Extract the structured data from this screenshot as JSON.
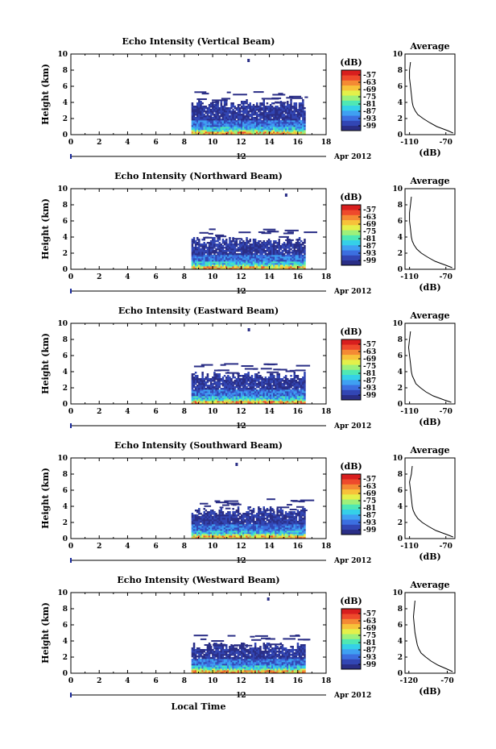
{
  "figure": {
    "date_label": "Apr 2012",
    "day_label": "12",
    "xlabel": "Local Time"
  },
  "colorbar": {
    "unit": "(dB)",
    "ticks": [
      "-57",
      "-63",
      "-69",
      "-75",
      "-81",
      "-87",
      "-93",
      "-99"
    ],
    "colors": [
      "#2a2e86",
      "#3246b4",
      "#3c6fe0",
      "#3fa0f2",
      "#35d0e8",
      "#4fe8b4",
      "#9ef07a",
      "#e4f04a",
      "#f7c23a",
      "#f48a34",
      "#ee4a2c",
      "#d81e1e"
    ]
  },
  "chart_data": [
    {
      "type": "heatmap",
      "title": "Echo Intensity (Vertical Beam)",
      "ylabel": "Height (km)",
      "xlim": [
        0,
        18
      ],
      "ylim": [
        0,
        10
      ],
      "xticks": [
        0,
        2,
        4,
        6,
        8,
        10,
        12,
        14,
        16,
        18
      ],
      "yticks": [
        0,
        2,
        4,
        6,
        8,
        10
      ],
      "data_time_range": [
        8.5,
        16.5
      ],
      "echo_top_km": 3.8,
      "average_profile": {
        "title": "Average",
        "xlabel": "(dB)",
        "xlim": [
          -115,
          -60
        ],
        "xticks": [
          -110,
          -70
        ],
        "heights": [
          0.2,
          0.5,
          1.0,
          1.5,
          2.0,
          2.5,
          3.0,
          3.5,
          4.0,
          5.0,
          6.0,
          7.0,
          8.0,
          9.0
        ],
        "values": [
          -62,
          -68,
          -80,
          -88,
          -95,
          -101,
          -104,
          -106,
          -107,
          -108,
          -109,
          -110,
          -110,
          -109
        ]
      }
    },
    {
      "type": "heatmap",
      "title": "Echo Intensity (Northward Beam)",
      "ylabel": "Height (km)",
      "xlim": [
        0,
        18
      ],
      "ylim": [
        0,
        10
      ],
      "xticks": [
        0,
        2,
        4,
        6,
        8,
        10,
        12,
        14,
        16,
        18
      ],
      "yticks": [
        0,
        2,
        4,
        6,
        8,
        10
      ],
      "data_time_range": [
        8.5,
        16.5
      ],
      "echo_top_km": 3.5,
      "average_profile": {
        "title": "Average",
        "xlabel": "(dB)",
        "xlim": [
          -115,
          -60
        ],
        "xticks": [
          -110,
          -70
        ],
        "heights": [
          0.2,
          0.5,
          1.0,
          1.5,
          2.0,
          2.5,
          3.0,
          3.5,
          4.0,
          5.0,
          6.0,
          7.0,
          8.0,
          9.0
        ],
        "values": [
          -63,
          -70,
          -82,
          -90,
          -97,
          -102,
          -105,
          -107,
          -108,
          -109,
          -110,
          -110,
          -109,
          -108
        ]
      }
    },
    {
      "type": "heatmap",
      "title": "Echo Intensity (Eastward Beam)",
      "ylabel": "Height (km)",
      "xlim": [
        0,
        18
      ],
      "ylim": [
        0,
        10
      ],
      "xticks": [
        0,
        2,
        4,
        6,
        8,
        10,
        12,
        14,
        16,
        18
      ],
      "yticks": [
        0,
        2,
        4,
        6,
        8,
        10
      ],
      "data_time_range": [
        8.5,
        16.5
      ],
      "echo_top_km": 3.5,
      "average_profile": {
        "title": "Average",
        "xlabel": "(dB)",
        "xlim": [
          -115,
          -60
        ],
        "xticks": [
          -110,
          -70
        ],
        "heights": [
          0.2,
          0.5,
          1.0,
          1.5,
          2.0,
          2.5,
          3.0,
          3.5,
          4.0,
          5.0,
          6.0,
          7.0,
          8.0,
          9.0
        ],
        "values": [
          -64,
          -72,
          -84,
          -92,
          -98,
          -103,
          -105,
          -107,
          -108,
          -109,
          -110,
          -111,
          -110,
          -109
        ]
      }
    },
    {
      "type": "heatmap",
      "title": "Echo Intensity (Southward Beam)",
      "ylabel": "Height (km)",
      "xlim": [
        0,
        18
      ],
      "ylim": [
        0,
        10
      ],
      "xticks": [
        0,
        2,
        4,
        6,
        8,
        10,
        12,
        14,
        16,
        18
      ],
      "yticks": [
        0,
        2,
        4,
        6,
        8,
        10
      ],
      "data_time_range": [
        8.5,
        16.5
      ],
      "echo_top_km": 3.4,
      "average_profile": {
        "title": "Average",
        "xlabel": "(dB)",
        "xlim": [
          -115,
          -60
        ],
        "xticks": [
          -110,
          -70
        ],
        "heights": [
          0.2,
          0.5,
          1.0,
          1.5,
          2.0,
          2.5,
          3.0,
          3.5,
          4.0,
          5.0,
          6.0,
          7.0,
          8.0,
          9.0
        ],
        "values": [
          -62,
          -69,
          -81,
          -89,
          -96,
          -101,
          -104,
          -106,
          -107,
          -108,
          -109,
          -110,
          -108,
          -107
        ]
      }
    },
    {
      "type": "heatmap",
      "title": "Echo Intensity (Westward Beam)",
      "ylabel": "Height (km)",
      "xlim": [
        0,
        18
      ],
      "ylim": [
        0,
        10
      ],
      "xticks": [
        0,
        2,
        4,
        6,
        8,
        10,
        12,
        14,
        16,
        18
      ],
      "yticks": [
        0,
        2,
        4,
        6,
        8,
        10
      ],
      "data_time_range": [
        8.5,
        16.5
      ],
      "echo_top_km": 3.3,
      "average_profile": {
        "title": "Average",
        "xlabel": "(dB)",
        "xlim": [
          -125,
          -60
        ],
        "xticks": [
          -120,
          -70
        ],
        "heights": [
          0.2,
          0.5,
          1.0,
          1.5,
          2.0,
          2.5,
          3.0,
          3.5,
          4.0,
          5.0,
          6.0,
          7.0,
          8.0,
          9.0
        ],
        "values": [
          -63,
          -70,
          -82,
          -91,
          -98,
          -104,
          -107,
          -109,
          -110,
          -112,
          -113,
          -114,
          -113,
          -112
        ]
      }
    }
  ]
}
